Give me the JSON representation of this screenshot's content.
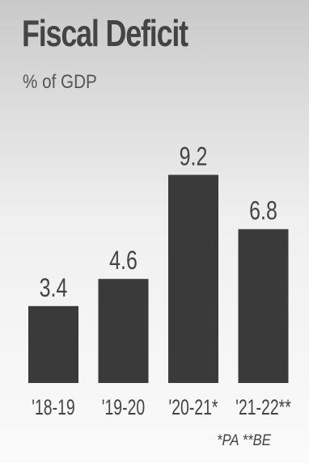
{
  "chart_data": {
    "type": "bar",
    "title": "Fiscal Deficit",
    "subtitle": "% of GDP",
    "categories": [
      "'18-19",
      "'19-20",
      "'20-21*",
      "'21-22**"
    ],
    "values": [
      3.4,
      4.6,
      9.2,
      6.8
    ],
    "value_labels": [
      "3.4",
      "4.6",
      "9.2",
      "6.8"
    ],
    "ylim": [
      0,
      10
    ],
    "grid": false,
    "bar_color": "#3a3a3a",
    "text_color": "#444444",
    "footnote": "*PA **BE"
  }
}
